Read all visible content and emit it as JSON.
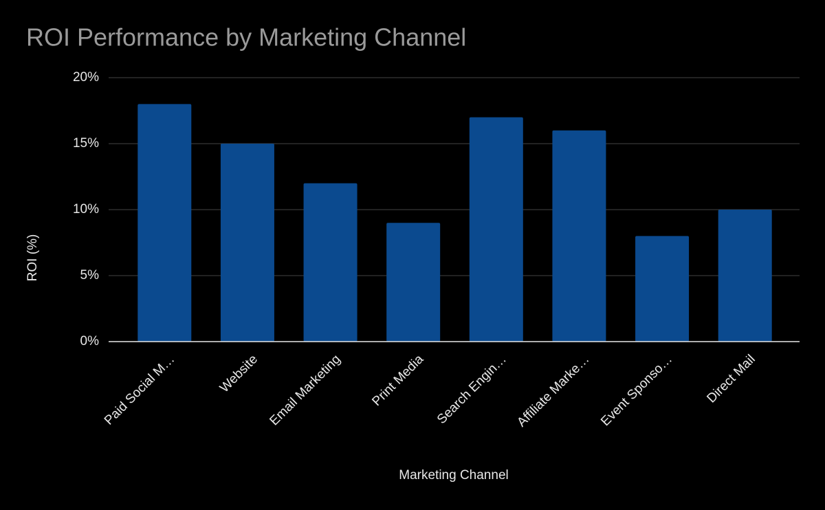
{
  "chart_data": {
    "type": "bar",
    "title": "ROI Performance by Marketing Channel",
    "x_label": "Marketing Channel",
    "y_label": "ROI (%)",
    "categories": [
      "Paid Social M…",
      "Website",
      "Email Marketing",
      "Print Media",
      "Search Engin…",
      "Affiliate Marke…",
      "Event Sponso…",
      "Direct Mail"
    ],
    "values": [
      18,
      15,
      12,
      9,
      17,
      16,
      8,
      10
    ],
    "color": "#0b4a8f",
    "ylim": [
      0,
      20
    ],
    "yticks": [
      {
        "value": 0,
        "label": "0%"
      },
      {
        "value": 5,
        "label": "5%"
      },
      {
        "value": 10,
        "label": "10%"
      },
      {
        "value": 15,
        "label": "15%"
      },
      {
        "value": 20,
        "label": "20%"
      }
    ],
    "grid": true
  }
}
